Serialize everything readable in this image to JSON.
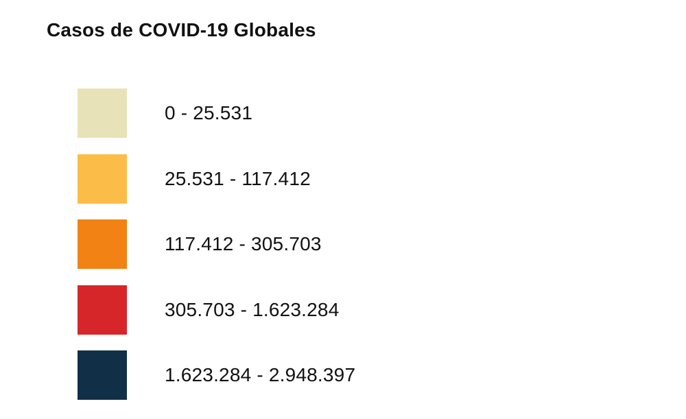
{
  "legend": {
    "title": "Casos de COVID-19 Globales",
    "items": [
      {
        "label": "0 - 25.531",
        "color": "#E8E2B8"
      },
      {
        "label": "25.531 - 117.412",
        "color": "#FBBD48"
      },
      {
        "label": "117.412 - 305.703",
        "color": "#F18213"
      },
      {
        "label": "305.703 - 1.623.284",
        "color": "#D7262A"
      },
      {
        "label": "1.623.284 - 2.948.397",
        "color": "#113048"
      }
    ]
  }
}
